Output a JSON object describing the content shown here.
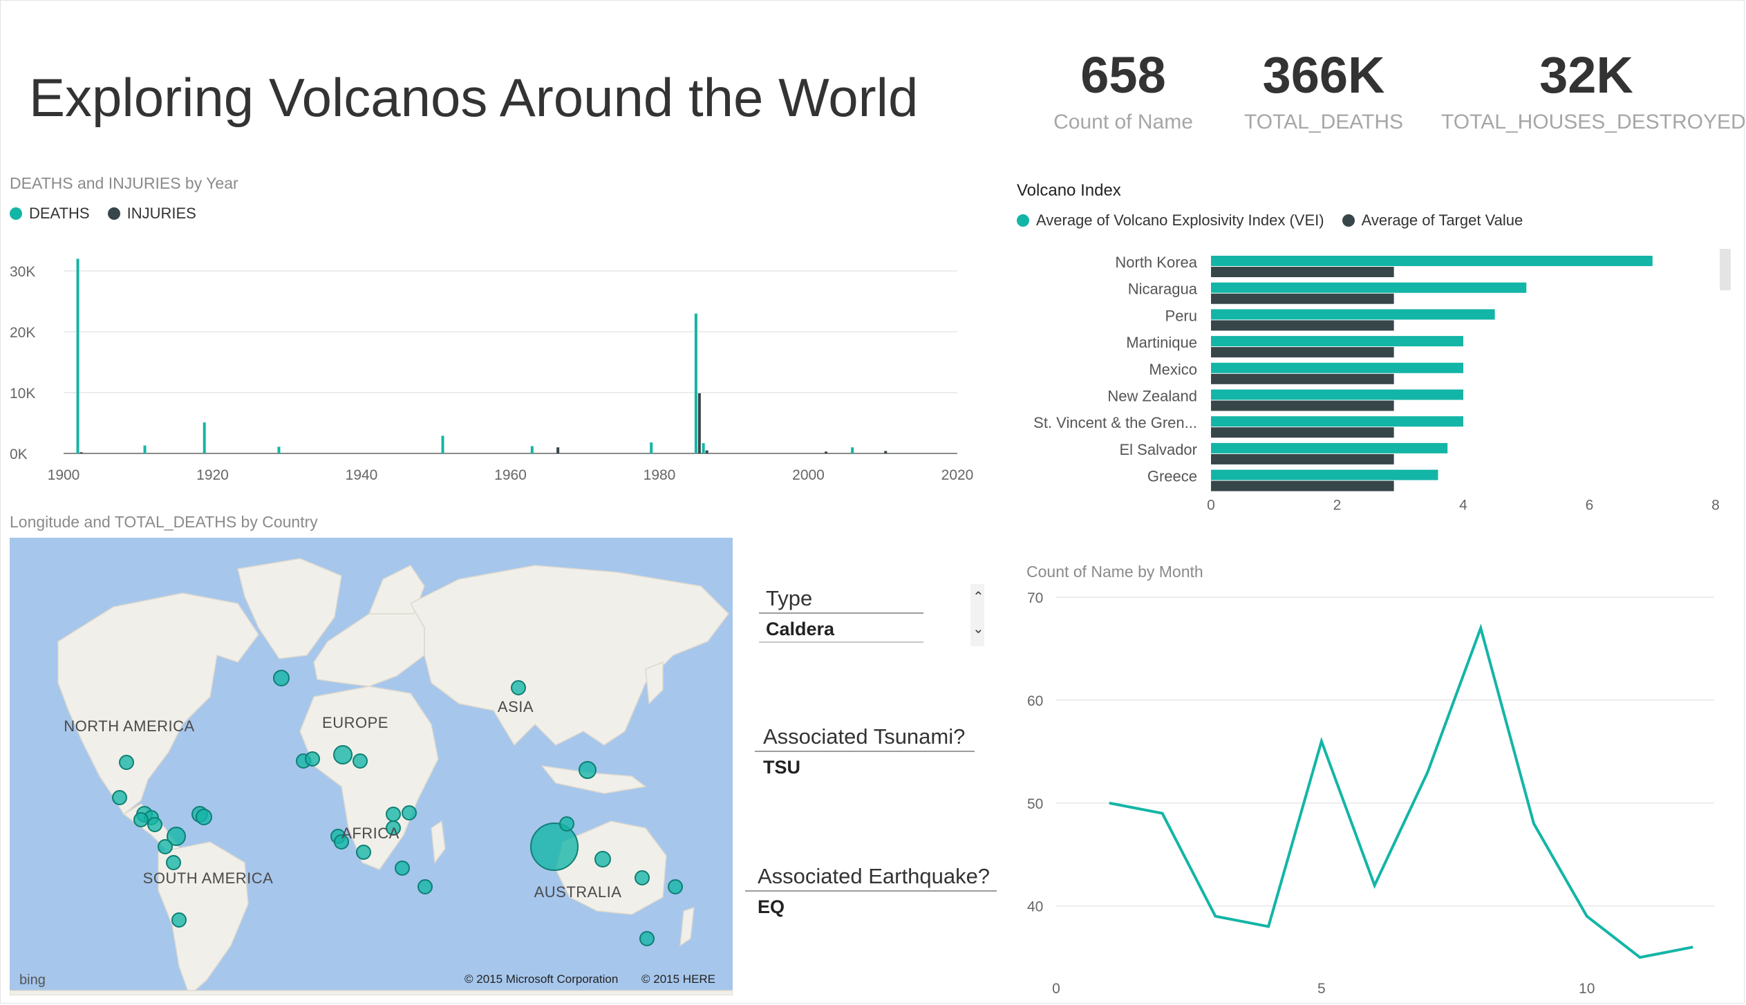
{
  "title": "Exploring Volcanos Around the World",
  "kpis": [
    {
      "value": "658",
      "label": "Count of Name"
    },
    {
      "value": "366K",
      "label": "TOTAL_DEATHS"
    },
    {
      "value": "32K",
      "label": "TOTAL_HOUSES_DESTROYED"
    }
  ],
  "colors": {
    "teal": "#13b5a6",
    "dark": "#374649",
    "grid": "#e6e6e6",
    "axis": "#666666",
    "water": "#a6c6ec",
    "land": "#f1efe9"
  },
  "map": {
    "title": "Longitude and TOTAL_DEATHS by Country",
    "labels": {
      "north_america": "NORTH AMERICA",
      "south_america": "SOUTH AMERICA",
      "europe": "EUROPE",
      "asia": "ASIA",
      "africa": "AFRICA",
      "australia": "AUSTRALIA"
    },
    "bing": "bing",
    "copyright_ms": "© 2015 Microsoft Corporation",
    "copyright_here": "© 2015 HERE"
  },
  "slicers": {
    "type": {
      "header": "Type",
      "value": "Caldera",
      "up_icon": "chevron-up-icon",
      "down_icon": "chevron-down-icon"
    },
    "tsunami": {
      "header": "Associated Tsunami?",
      "value": "TSU"
    },
    "earthquake": {
      "header": "Associated Earthquake?",
      "value": "EQ"
    }
  },
  "chart_data": [
    {
      "type": "bar",
      "title": "DEATHS and INJURIES by Year",
      "series": [
        {
          "name": "DEATHS",
          "color": "#13b5a6",
          "points": [
            [
              1902,
              32000
            ],
            [
              1911,
              1300
            ],
            [
              1919,
              5100
            ],
            [
              1929,
              1100
            ],
            [
              1951,
              2900
            ],
            [
              1963,
              1200
            ],
            [
              1979,
              1800
            ],
            [
              1985,
              23000
            ],
            [
              1986,
              1700
            ],
            [
              2006,
              1000
            ]
          ]
        },
        {
          "name": "INJURIES",
          "color": "#374649",
          "points": [
            [
              1902,
              200
            ],
            [
              1966,
              1000
            ],
            [
              1985,
              9900
            ],
            [
              1986,
              500
            ],
            [
              2002,
              300
            ],
            [
              2010,
              400
            ]
          ]
        }
      ],
      "x_ticks": [
        "1900",
        "1920",
        "1940",
        "1960",
        "1980",
        "2000",
        "2020"
      ],
      "xlim": [
        1900,
        2020
      ],
      "y_ticks": [
        "0K",
        "10K",
        "20K",
        "30K"
      ],
      "ylim": [
        0,
        30000
      ],
      "grid": true,
      "legend": "top-left"
    },
    {
      "type": "bar",
      "orientation": "horizontal",
      "title": "Volcano Index",
      "categories": [
        "North Korea",
        "Nicaragua",
        "Peru",
        "Martinique",
        "Mexico",
        "New Zealand",
        "St. Vincent & the Gren...",
        "El Salvador",
        "Greece"
      ],
      "series": [
        {
          "name": "Average of Volcano Explosivity Index (VEI)",
          "color": "#13b5a6",
          "values": [
            7,
            5,
            4.5,
            4,
            4,
            4,
            4,
            3.75,
            3.6
          ]
        },
        {
          "name": "Average of Target Value",
          "color": "#374649",
          "values": [
            2.9,
            2.9,
            2.9,
            2.9,
            2.9,
            2.9,
            2.9,
            2.9,
            2.9
          ]
        }
      ],
      "x_ticks": [
        "0",
        "2",
        "4",
        "6",
        "8"
      ],
      "xlim": [
        0,
        8
      ],
      "grid": false,
      "legend": "top-left"
    },
    {
      "type": "line",
      "title": "Count of Name by Month",
      "series": [
        {
          "color": "#13b5a6",
          "x": [
            1,
            2,
            3,
            4,
            5,
            6,
            7,
            8,
            9,
            10,
            11,
            12
          ],
          "y": [
            50,
            49,
            39,
            38,
            56,
            42,
            53,
            67,
            48,
            39,
            35,
            36
          ]
        }
      ],
      "x_ticks": [
        "0",
        "5",
        "10"
      ],
      "xlim": [
        0,
        12.4
      ],
      "y_ticks": [
        "40",
        "50",
        "60",
        "70"
      ],
      "ylim": [
        34,
        70
      ],
      "grid": true
    }
  ]
}
